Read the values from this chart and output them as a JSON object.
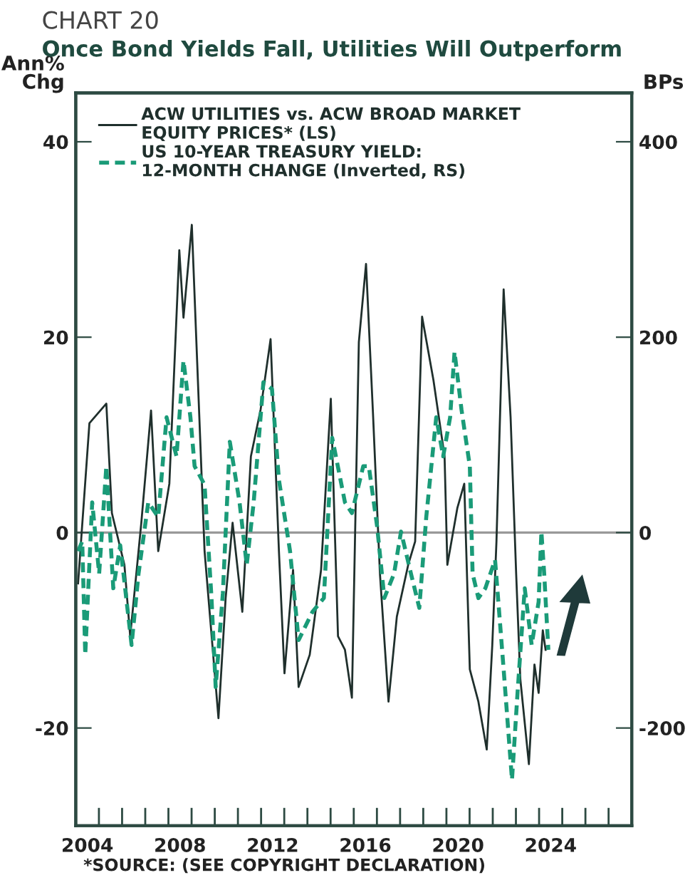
{
  "chart_data": {
    "type": "line",
    "subtitle": "CHART 20",
    "title": "Once Bond Yields Fall, Utilities Will Outperform",
    "ylabel": "Ann%\nChg",
    "y2label": "BPs",
    "annotations": [
      "*SOURCE: (SEE COPYRIGHT DECLARATION)"
    ],
    "xlim": [
      2004,
      2028
    ],
    "ylim": [
      -30,
      45
    ],
    "yticks": [
      40,
      20,
      0,
      -20
    ],
    "y2lim": [
      -300,
      450
    ],
    "y2ticks": [
      400,
      200,
      0,
      -200
    ],
    "xticks": [
      {
        "value": 2004.5,
        "label": "2004"
      },
      {
        "value": 2008.5,
        "label": "2008"
      },
      {
        "value": 2012.5,
        "label": "2012"
      },
      {
        "value": 2016.5,
        "label": "2016"
      },
      {
        "value": 2020.5,
        "label": "2020"
      },
      {
        "value": 2024.5,
        "label": "2024"
      },
      {
        "value": 2005,
        "label": null
      },
      {
        "value": 2006,
        "label": null
      },
      {
        "value": 2007,
        "label": null
      },
      {
        "value": 2008,
        "label": null
      },
      {
        "value": 2009,
        "label": null
      },
      {
        "value": 2010,
        "label": null
      },
      {
        "value": 2011,
        "label": null
      },
      {
        "value": 2012,
        "label": null
      },
      {
        "value": 2013,
        "label": null
      },
      {
        "value": 2014,
        "label": null
      },
      {
        "value": 2015,
        "label": null
      },
      {
        "value": 2016,
        "label": null
      },
      {
        "value": 2017,
        "label": null
      },
      {
        "value": 2018,
        "label": null
      },
      {
        "value": 2019,
        "label": null
      },
      {
        "value": 2020,
        "label": null
      },
      {
        "value": 2021,
        "label": null
      },
      {
        "value": 2022,
        "label": null
      },
      {
        "value": 2023,
        "label": null
      },
      {
        "value": 2024,
        "label": null
      },
      {
        "value": 2025,
        "label": null
      },
      {
        "value": 2026,
        "label": null
      },
      {
        "value": 2027,
        "label": null
      }
    ],
    "grid": false,
    "legend": "top left",
    "ref_lines": [
      {
        "axis": "y",
        "value": 0,
        "color": "#999999"
      }
    ],
    "series": [
      {
        "name": "ACW UTILITIES vs. ACW BROAD MARKET\nEQUITY PRICES* (LS)",
        "color": "#1f2f2c",
        "line_style": "solid",
        "x": [
          2004.1,
          2004.59,
          2005.32,
          2005.56,
          2006.1,
          2006.35,
          2006.83,
          2007.25,
          2007.56,
          2008.04,
          2008.47,
          2008.65,
          2009.01,
          2009.56,
          2010.16,
          2010.47,
          2010.77,
          2011.19,
          2011.56,
          2011.98,
          2012.41,
          2012.77,
          2013.01,
          2013.38,
          2013.62,
          2014.1,
          2014.59,
          2015.01,
          2015.32,
          2015.62,
          2015.92,
          2016.22,
          2016.53,
          2016.83,
          2017.13,
          2017.5,
          2017.86,
          2018.35,
          2018.65,
          2018.95,
          2019.44,
          2019.92,
          2020.04,
          2020.47,
          2020.77,
          2021.01,
          2021.38,
          2021.74,
          2021.98,
          2022.16,
          2022.47,
          2022.77,
          2023.01,
          2023.19,
          2023.56,
          2023.8,
          2023.98,
          2024.16,
          2024.28
        ],
        "values": [
          -5.2,
          11.2,
          13.2,
          2,
          -3.3,
          -10.6,
          1,
          12.5,
          -1.9,
          5,
          28.9,
          22,
          31.5,
          -1.9,
          -19,
          -6.7,
          1,
          -8.1,
          7.8,
          12.6,
          19.8,
          -1.9,
          -14.4,
          -3.8,
          -15.8,
          -12.5,
          -3.8,
          13.7,
          -10.6,
          -12,
          -16.9,
          19.5,
          27.5,
          12.2,
          -4.2,
          -17.3,
          -8.6,
          -3.3,
          -0.9,
          22.1,
          15.6,
          7.8,
          -3.3,
          2.5,
          5,
          -14,
          -17.3,
          -22.2,
          -11.5,
          -0.9,
          24.9,
          11.8,
          -4.2,
          -15,
          -23.7,
          -13.5,
          -16.4,
          -10,
          -12
        ]
      },
      {
        "name": "US 10-YEAR TREASURY YIELD:\n12-MONTH CHANGE (Inverted, RS)",
        "color": "#1a9b78",
        "line_style": "dashed",
        "axis": "y2",
        "x": [
          2004.1,
          2004.28,
          2004.41,
          2004.71,
          2005.01,
          2005.32,
          2005.62,
          2005.92,
          2006.41,
          2006.71,
          2007.13,
          2007.56,
          2007.92,
          2008.35,
          2008.65,
          2008.95,
          2009.13,
          2009.56,
          2009.86,
          2010.04,
          2010.35,
          2010.65,
          2011.07,
          2011.38,
          2011.68,
          2012.1,
          2012.47,
          2012.77,
          2013.25,
          2013.62,
          2014.22,
          2014.71,
          2015.07,
          2015.62,
          2015.92,
          2016.41,
          2016.65,
          2017.01,
          2017.32,
          2017.74,
          2018.04,
          2018.47,
          2018.83,
          2019.13,
          2019.56,
          2019.86,
          2020.16,
          2020.35,
          2020.65,
          2021.01,
          2021.13,
          2021.38,
          2021.68,
          2022.1,
          2022.47,
          2022.83,
          2023.07,
          2023.38,
          2023.68,
          2023.98,
          2024.1,
          2024.22,
          2024.4
        ],
        "values": [
          -19,
          -9,
          -125,
          31,
          -42,
          68,
          -57,
          -13,
          -115,
          -42,
          31,
          16,
          118,
          78,
          176,
          118,
          68,
          49,
          -67,
          -158,
          -62,
          93,
          31,
          -33,
          31,
          154,
          147,
          54,
          -19,
          -110,
          -81,
          -67,
          97,
          31,
          20,
          68,
          68,
          6,
          -67,
          -42,
          1,
          -42,
          -77,
          16,
          118,
          78,
          118,
          185,
          126,
          68,
          -42,
          -67,
          -57,
          -28,
          -140,
          -253,
          -164,
          -57,
          -115,
          -71,
          1,
          -42,
          -120
        ]
      }
    ]
  }
}
